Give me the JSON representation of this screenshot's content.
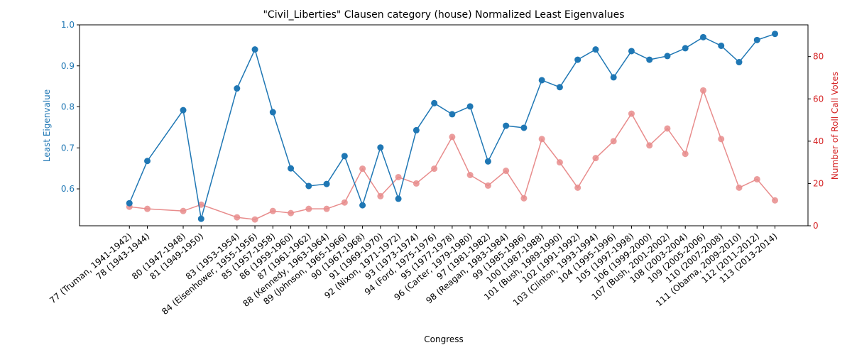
{
  "chart_data": {
    "type": "line",
    "title": "\"Civil_Liberties\" Clausen category (house) Normalized Least Eigenvalues",
    "xlabel": "Congress",
    "ylabel_left": "Least Eigenvalue",
    "ylabel_right": "Number of Roll Call Votes",
    "ylim_left": [
      0.51,
      1.0
    ],
    "ylim_right": [
      0,
      95
    ],
    "yticks_left": [
      0.6,
      0.7,
      0.8,
      0.9,
      1.0
    ],
    "yticks_right": [
      0,
      20,
      40,
      60,
      80
    ],
    "left_color": "#1f77b4",
    "right_color": "#d62728",
    "right_line_color": "#e88c8c",
    "grid": false,
    "congress": [
      77,
      78,
      80,
      81,
      83,
      84,
      85,
      86,
      87,
      88,
      89,
      90,
      91,
      92,
      93,
      94,
      95,
      96,
      97,
      98,
      99,
      100,
      101,
      102,
      103,
      104,
      105,
      106,
      107,
      108,
      109,
      110,
      111,
      112,
      113
    ],
    "tick_labels": [
      "77 (Truman, 1941-1942)",
      "78 (1943-1944)",
      "80 (1947-1948)",
      "81 (1949-1950)",
      "83 (1953-1954)",
      "84 (Eisenhower, 1955-1956)",
      "85 (1957-1958)",
      "86 (1959-1960)",
      "87 (1961-1962)",
      "88 (Kennedy, 1963-1964)",
      "89 (Johnson, 1965-1966)",
      "90 (1967-1968)",
      "91 (1969-1970)",
      "92 (Nixon, 1971-1972)",
      "93 (1973-1974)",
      "94 (Ford, 1975-1976)",
      "95 (1977-1978)",
      "96 (Carter, 1979-1980)",
      "97 (1981-1982)",
      "98 (Reagan, 1983-1984)",
      "99 (1985-1986)",
      "100 (1987-1988)",
      "101 (Bush, 1989-1990)",
      "102 (1991-1992)",
      "103 (Clinton, 1993-1994)",
      "104 (1995-1996)",
      "105 (1997-1998)",
      "106 (1999-2000)",
      "107 (Bush, 2001-2002)",
      "108 (2003-2004)",
      "109 (2005-2006)",
      "110 (2007-2008)",
      "111 (Obama, 2009-2010)",
      "112 (2011-2012)",
      "113 (2013-2014)"
    ],
    "series": [
      {
        "axis": "left",
        "values": [
          0.565,
          0.668,
          0.792,
          0.527,
          0.845,
          0.94,
          0.787,
          0.65,
          0.607,
          0.612,
          0.68,
          0.56,
          0.701,
          0.576,
          0.743,
          0.809,
          0.782,
          0.801,
          0.667,
          0.754,
          0.749,
          0.865,
          0.848,
          0.915,
          0.94,
          0.872,
          0.936,
          0.915,
          0.924,
          0.943,
          0.97,
          0.949,
          0.909,
          0.963,
          0.978
        ]
      },
      {
        "axis": "right",
        "values": [
          9,
          8,
          7,
          10,
          4,
          3,
          7,
          6,
          8,
          8,
          11,
          27,
          14,
          23,
          20,
          27,
          42,
          24,
          19,
          26,
          13,
          41,
          30,
          18,
          32,
          40,
          53,
          38,
          46,
          34,
          64,
          41,
          18,
          22,
          12
        ]
      }
    ]
  }
}
